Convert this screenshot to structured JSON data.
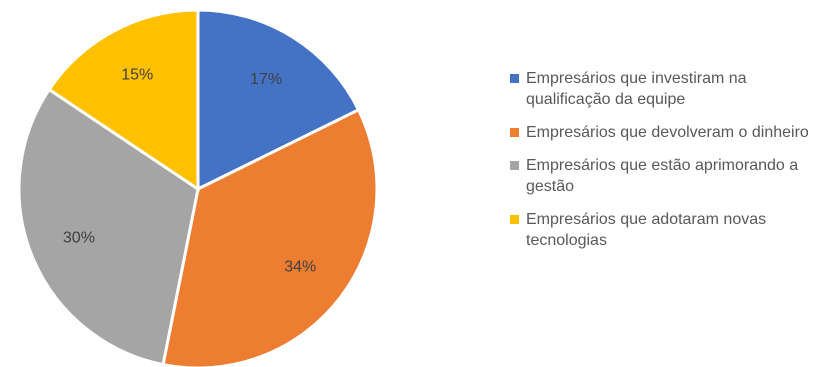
{
  "chart_data": {
    "type": "pie",
    "title": "",
    "slices": [
      {
        "label": "Empresários que investiram na qualificação da equipe",
        "value": 17,
        "display": "17%",
        "color": "#4472C4"
      },
      {
        "label": "Empresários que devolveram o dinheiro",
        "value": 34,
        "display": "34%",
        "color": "#ED7D31"
      },
      {
        "label": "Empresários que estão aprimorando a gestão",
        "value": 30,
        "display": "30%",
        "color": "#A5A5A5"
      },
      {
        "label": "Empresários que adotaram novas tecnologias",
        "value": 15,
        "display": "15%",
        "color": "#FFC000"
      }
    ],
    "legend_position": "right",
    "start_angle": "top",
    "direction": "clockwise"
  }
}
